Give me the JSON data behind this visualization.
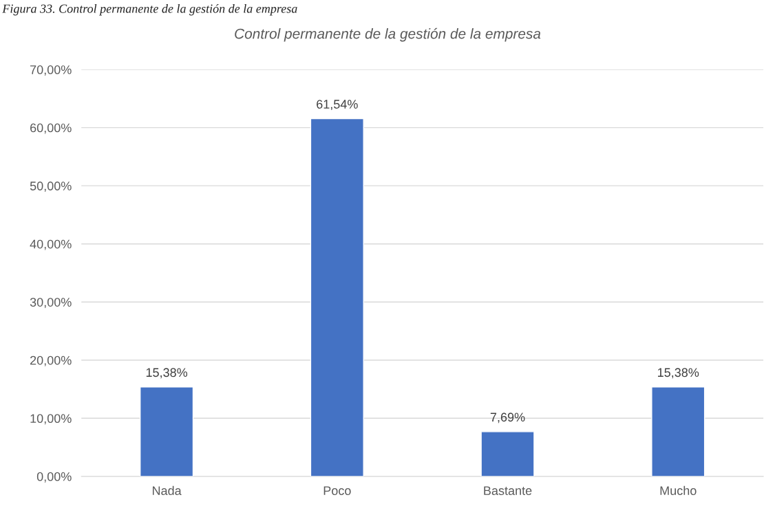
{
  "chart_data": {
    "type": "bar",
    "title": "Control permanente de la gestión de la empresa",
    "annotations": [
      "Figura 33. Control permanente de la gestión de la empresa"
    ],
    "categories": [
      "Nada",
      "Poco",
      "Bastante",
      "Mucho"
    ],
    "values": [
      15.38,
      61.54,
      7.69,
      15.38
    ],
    "value_labels": [
      "15,38%",
      "61,54%",
      "7,69%",
      "15,38%"
    ],
    "color": "#4472c4",
    "ylim": [
      0,
      70
    ],
    "yticks": [
      {
        "value": 0,
        "label": "0,00%"
      },
      {
        "value": 10,
        "label": "10,00%"
      },
      {
        "value": 20,
        "label": "20,00%"
      },
      {
        "value": 30,
        "label": "30,00%"
      },
      {
        "value": 40,
        "label": "40,00%"
      },
      {
        "value": 50,
        "label": "50,00%"
      },
      {
        "value": 60,
        "label": "60,00%"
      },
      {
        "value": 70,
        "label": "70,00%"
      }
    ],
    "grid": "y",
    "legend": false
  }
}
